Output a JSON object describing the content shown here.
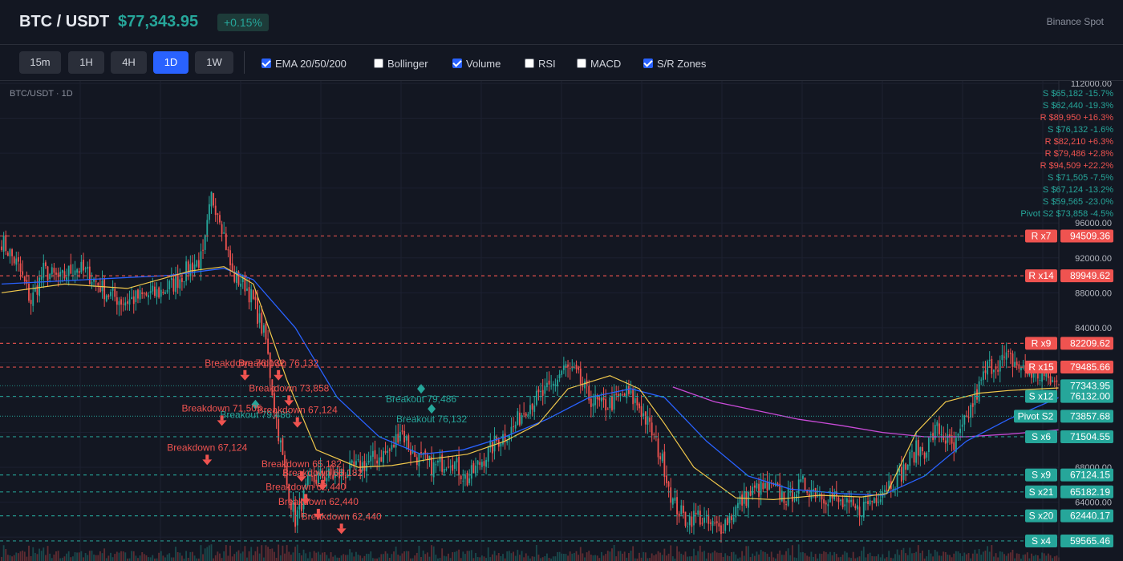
{
  "header": {
    "pair": "BTC / USDT",
    "price": "$77,343.95",
    "change": "+0.15%",
    "exchange": "Binance Spot"
  },
  "toolbar": {
    "timeframes": [
      {
        "label": "15m",
        "active": false
      },
      {
        "label": "1H",
        "active": false
      },
      {
        "label": "4H",
        "active": false
      },
      {
        "label": "1D",
        "active": true
      },
      {
        "label": "1W",
        "active": false
      }
    ],
    "toggles": [
      {
        "label": "EMA 20/50/200",
        "checked": true
      },
      {
        "label": "Bollinger",
        "checked": false
      },
      {
        "label": "Volume",
        "checked": true
      },
      {
        "label": "RSI",
        "checked": false
      },
      {
        "label": "MACD",
        "checked": false
      },
      {
        "label": "S/R Zones",
        "checked": true
      }
    ]
  },
  "colors": {
    "up": "#26a69a",
    "down": "#ef5350",
    "ema20": "#f2c94c",
    "ema50": "#2962ff",
    "ema200": "#c94bd8",
    "resistance": "#ef5350",
    "support": "#26a69a",
    "accent": "#2962ff"
  },
  "chart_data": {
    "type": "candlestick",
    "legend": "BTC/USDT · 1D",
    "ylim": [
      58000,
      112000
    ],
    "y_ticks": [
      "112000.00",
      "96000.00",
      "92000.00",
      "88000.00",
      "84000.00",
      "68000.00",
      "64000.00"
    ],
    "last_price": "77343.95",
    "sr_levels": [
      {
        "kind": "R",
        "tag": "R x7",
        "price": 94509.36,
        "price_label": "94509.36"
      },
      {
        "kind": "R",
        "tag": "R x14",
        "price": 89949.62,
        "price_label": "89949.62"
      },
      {
        "kind": "R",
        "tag": "R x9",
        "price": 82209.62,
        "price_label": "82209.62"
      },
      {
        "kind": "R",
        "tag": "R x15",
        "price": 79485.66,
        "price_label": "79485.66"
      },
      {
        "kind": "S",
        "tag": "S x12",
        "price": 76132.0,
        "price_label": "76132.00"
      },
      {
        "kind": "P",
        "tag": "Pivot S2",
        "price": 73857.68,
        "price_label": "73857.68"
      },
      {
        "kind": "S",
        "tag": "S x6",
        "price": 71504.55,
        "price_label": "71504.55"
      },
      {
        "kind": "S",
        "tag": "S x9",
        "price": 67124.15,
        "price_label": "67124.15"
      },
      {
        "kind": "S",
        "tag": "S x21",
        "price": 65182.19,
        "price_label": "65182.19"
      },
      {
        "kind": "S",
        "tag": "S x20",
        "price": 62440.17,
        "price_label": "62440.17"
      },
      {
        "kind": "S",
        "tag": "S x4",
        "price": 59565.46,
        "price_label": "59565.46"
      }
    ],
    "right_list": [
      {
        "text": "S $65,182 -15.7%",
        "kind": "S"
      },
      {
        "text": "S $62,440 -19.3%",
        "kind": "S"
      },
      {
        "text": "R $89,950 +16.3%",
        "kind": "R"
      },
      {
        "text": "S $76,132 -1.6%",
        "kind": "S"
      },
      {
        "text": "R $82,210 +6.3%",
        "kind": "R"
      },
      {
        "text": "R $79,486 +2.8%",
        "kind": "R"
      },
      {
        "text": "R $94,509 +22.2%",
        "kind": "R"
      },
      {
        "text": "S $71,505 -7.5%",
        "kind": "S"
      },
      {
        "text": "S $67,124 -13.2%",
        "kind": "S"
      },
      {
        "text": "S $59,565 -23.0%",
        "kind": "S"
      },
      {
        "text": "Pivot S2 $73,858 -4.5%",
        "kind": "S"
      }
    ],
    "signals": [
      {
        "text": "Breakdown 76,132",
        "type": "down",
        "i": 116,
        "price": 78500
      },
      {
        "text": "Breakdown 76,132",
        "type": "down",
        "i": 132,
        "price": 78500
      },
      {
        "text": "Breakout 79,486",
        "type": "up",
        "i": 121,
        "price": 75200
      },
      {
        "text": "Breakdown 71,505",
        "type": "down",
        "i": 105,
        "price": 73300
      },
      {
        "text": "Breakdown 73,858",
        "type": "down",
        "i": 137,
        "price": 75600
      },
      {
        "text": "Breakdown 67,124",
        "type": "down",
        "i": 141,
        "price": 73100
      },
      {
        "text": "Breakdown 67,124",
        "type": "down",
        "i": 98,
        "price": 68800
      },
      {
        "text": "Breakdown 65,182",
        "type": "down",
        "i": 143,
        "price": 66900
      },
      {
        "text": "Breakdown 65,182",
        "type": "down",
        "i": 153,
        "price": 65900
      },
      {
        "text": "Breakdown 62,440",
        "type": "down",
        "i": 145,
        "price": 64300
      },
      {
        "text": "Breakdown 62,440",
        "type": "down",
        "i": 151,
        "price": 62600
      },
      {
        "text": "Breakdown 62,440",
        "type": "down",
        "i": 162,
        "price": 60900
      },
      {
        "text": "Breakout 79,486",
        "type": "up",
        "i": 200,
        "price": 77000
      },
      {
        "text": "Breakout 76,132",
        "type": "up",
        "i": 205,
        "price": 74700
      }
    ],
    "close_path": [
      [
        0,
        94000
      ],
      [
        8,
        91000
      ],
      [
        14,
        87000
      ],
      [
        20,
        90500
      ],
      [
        28,
        89500
      ],
      [
        35,
        91000
      ],
      [
        42,
        90000
      ],
      [
        50,
        88000
      ],
      [
        58,
        87000
      ],
      [
        66,
        87500
      ],
      [
        75,
        88000
      ],
      [
        82,
        89000
      ],
      [
        90,
        91000
      ],
      [
        96,
        92000
      ],
      [
        100,
        99000
      ],
      [
        104,
        97000
      ],
      [
        110,
        90000
      ],
      [
        116,
        89000
      ],
      [
        120,
        87000
      ],
      [
        126,
        82500
      ],
      [
        130,
        75000
      ],
      [
        136,
        66000
      ],
      [
        140,
        62000
      ],
      [
        146,
        66000
      ],
      [
        152,
        67000
      ],
      [
        160,
        67000
      ],
      [
        170,
        68000
      ],
      [
        178,
        69000
      ],
      [
        186,
        70000
      ],
      [
        190,
        72500
      ],
      [
        196,
        69500
      ],
      [
        206,
        68000
      ],
      [
        214,
        69000
      ],
      [
        222,
        66500
      ],
      [
        228,
        68500
      ],
      [
        236,
        71000
      ],
      [
        244,
        72500
      ],
      [
        250,
        75000
      ],
      [
        256,
        76000
      ],
      [
        262,
        77000
      ],
      [
        268,
        79500
      ],
      [
        274,
        78500
      ],
      [
        280,
        76000
      ],
      [
        286,
        75000
      ],
      [
        292,
        75500
      ],
      [
        298,
        76500
      ],
      [
        304,
        75000
      ],
      [
        310,
        72000
      ],
      [
        316,
        68000
      ],
      [
        320,
        64000
      ],
      [
        326,
        62000
      ],
      [
        332,
        62500
      ],
      [
        336,
        61500
      ],
      [
        342,
        61000
      ],
      [
        348,
        62500
      ],
      [
        352,
        64000
      ],
      [
        360,
        65500
      ],
      [
        368,
        65500
      ],
      [
        374,
        64500
      ],
      [
        382,
        66000
      ],
      [
        390,
        65000
      ],
      [
        396,
        64500
      ],
      [
        402,
        63500
      ],
      [
        408,
        63000
      ],
      [
        416,
        64500
      ],
      [
        422,
        66000
      ],
      [
        428,
        67000
      ],
      [
        436,
        70000
      ],
      [
        440,
        70000
      ],
      [
        446,
        72500
      ],
      [
        454,
        70000
      ],
      [
        460,
        73500
      ],
      [
        470,
        79500
      ],
      [
        480,
        80500
      ],
      [
        488,
        79000
      ],
      [
        496,
        78500
      ],
      [
        504,
        77344
      ]
    ],
    "ema20_path": [
      [
        0,
        88000
      ],
      [
        30,
        89000
      ],
      [
        60,
        88500
      ],
      [
        90,
        90500
      ],
      [
        106,
        91000
      ],
      [
        120,
        89000
      ],
      [
        136,
        78000
      ],
      [
        150,
        70000
      ],
      [
        170,
        68000
      ],
      [
        186,
        68200
      ],
      [
        206,
        69000
      ],
      [
        222,
        69500
      ],
      [
        240,
        71000
      ],
      [
        256,
        73000
      ],
      [
        270,
        77000
      ],
      [
        290,
        78500
      ],
      [
        304,
        77000
      ],
      [
        316,
        73000
      ],
      [
        330,
        68000
      ],
      [
        350,
        64500
      ],
      [
        368,
        64300
      ],
      [
        390,
        64800
      ],
      [
        410,
        64600
      ],
      [
        422,
        65000
      ],
      [
        436,
        72000
      ],
      [
        450,
        75500
      ],
      [
        466,
        76500
      ],
      [
        480,
        76800
      ],
      [
        504,
        77100
      ]
    ],
    "ema50_path": [
      [
        0,
        89000
      ],
      [
        40,
        89500
      ],
      [
        80,
        90000
      ],
      [
        106,
        90800
      ],
      [
        120,
        89500
      ],
      [
        140,
        84000
      ],
      [
        160,
        76000
      ],
      [
        180,
        71500
      ],
      [
        200,
        69500
      ],
      [
        220,
        70000
      ],
      [
        240,
        71500
      ],
      [
        260,
        73500
      ],
      [
        280,
        76000
      ],
      [
        300,
        77000
      ],
      [
        316,
        76000
      ],
      [
        336,
        71000
      ],
      [
        356,
        67000
      ],
      [
        376,
        65500
      ],
      [
        400,
        65000
      ],
      [
        420,
        64800
      ],
      [
        440,
        67000
      ],
      [
        460,
        71000
      ],
      [
        480,
        73500
      ],
      [
        504,
        76000
      ]
    ],
    "ema200_path": [
      [
        320,
        77200
      ],
      [
        340,
        75500
      ],
      [
        360,
        74500
      ],
      [
        380,
        73500
      ],
      [
        400,
        72800
      ],
      [
        420,
        72000
      ],
      [
        440,
        71500
      ],
      [
        460,
        71500
      ],
      [
        480,
        71800
      ],
      [
        504,
        72300
      ]
    ],
    "volume_note": "Volume"
  }
}
